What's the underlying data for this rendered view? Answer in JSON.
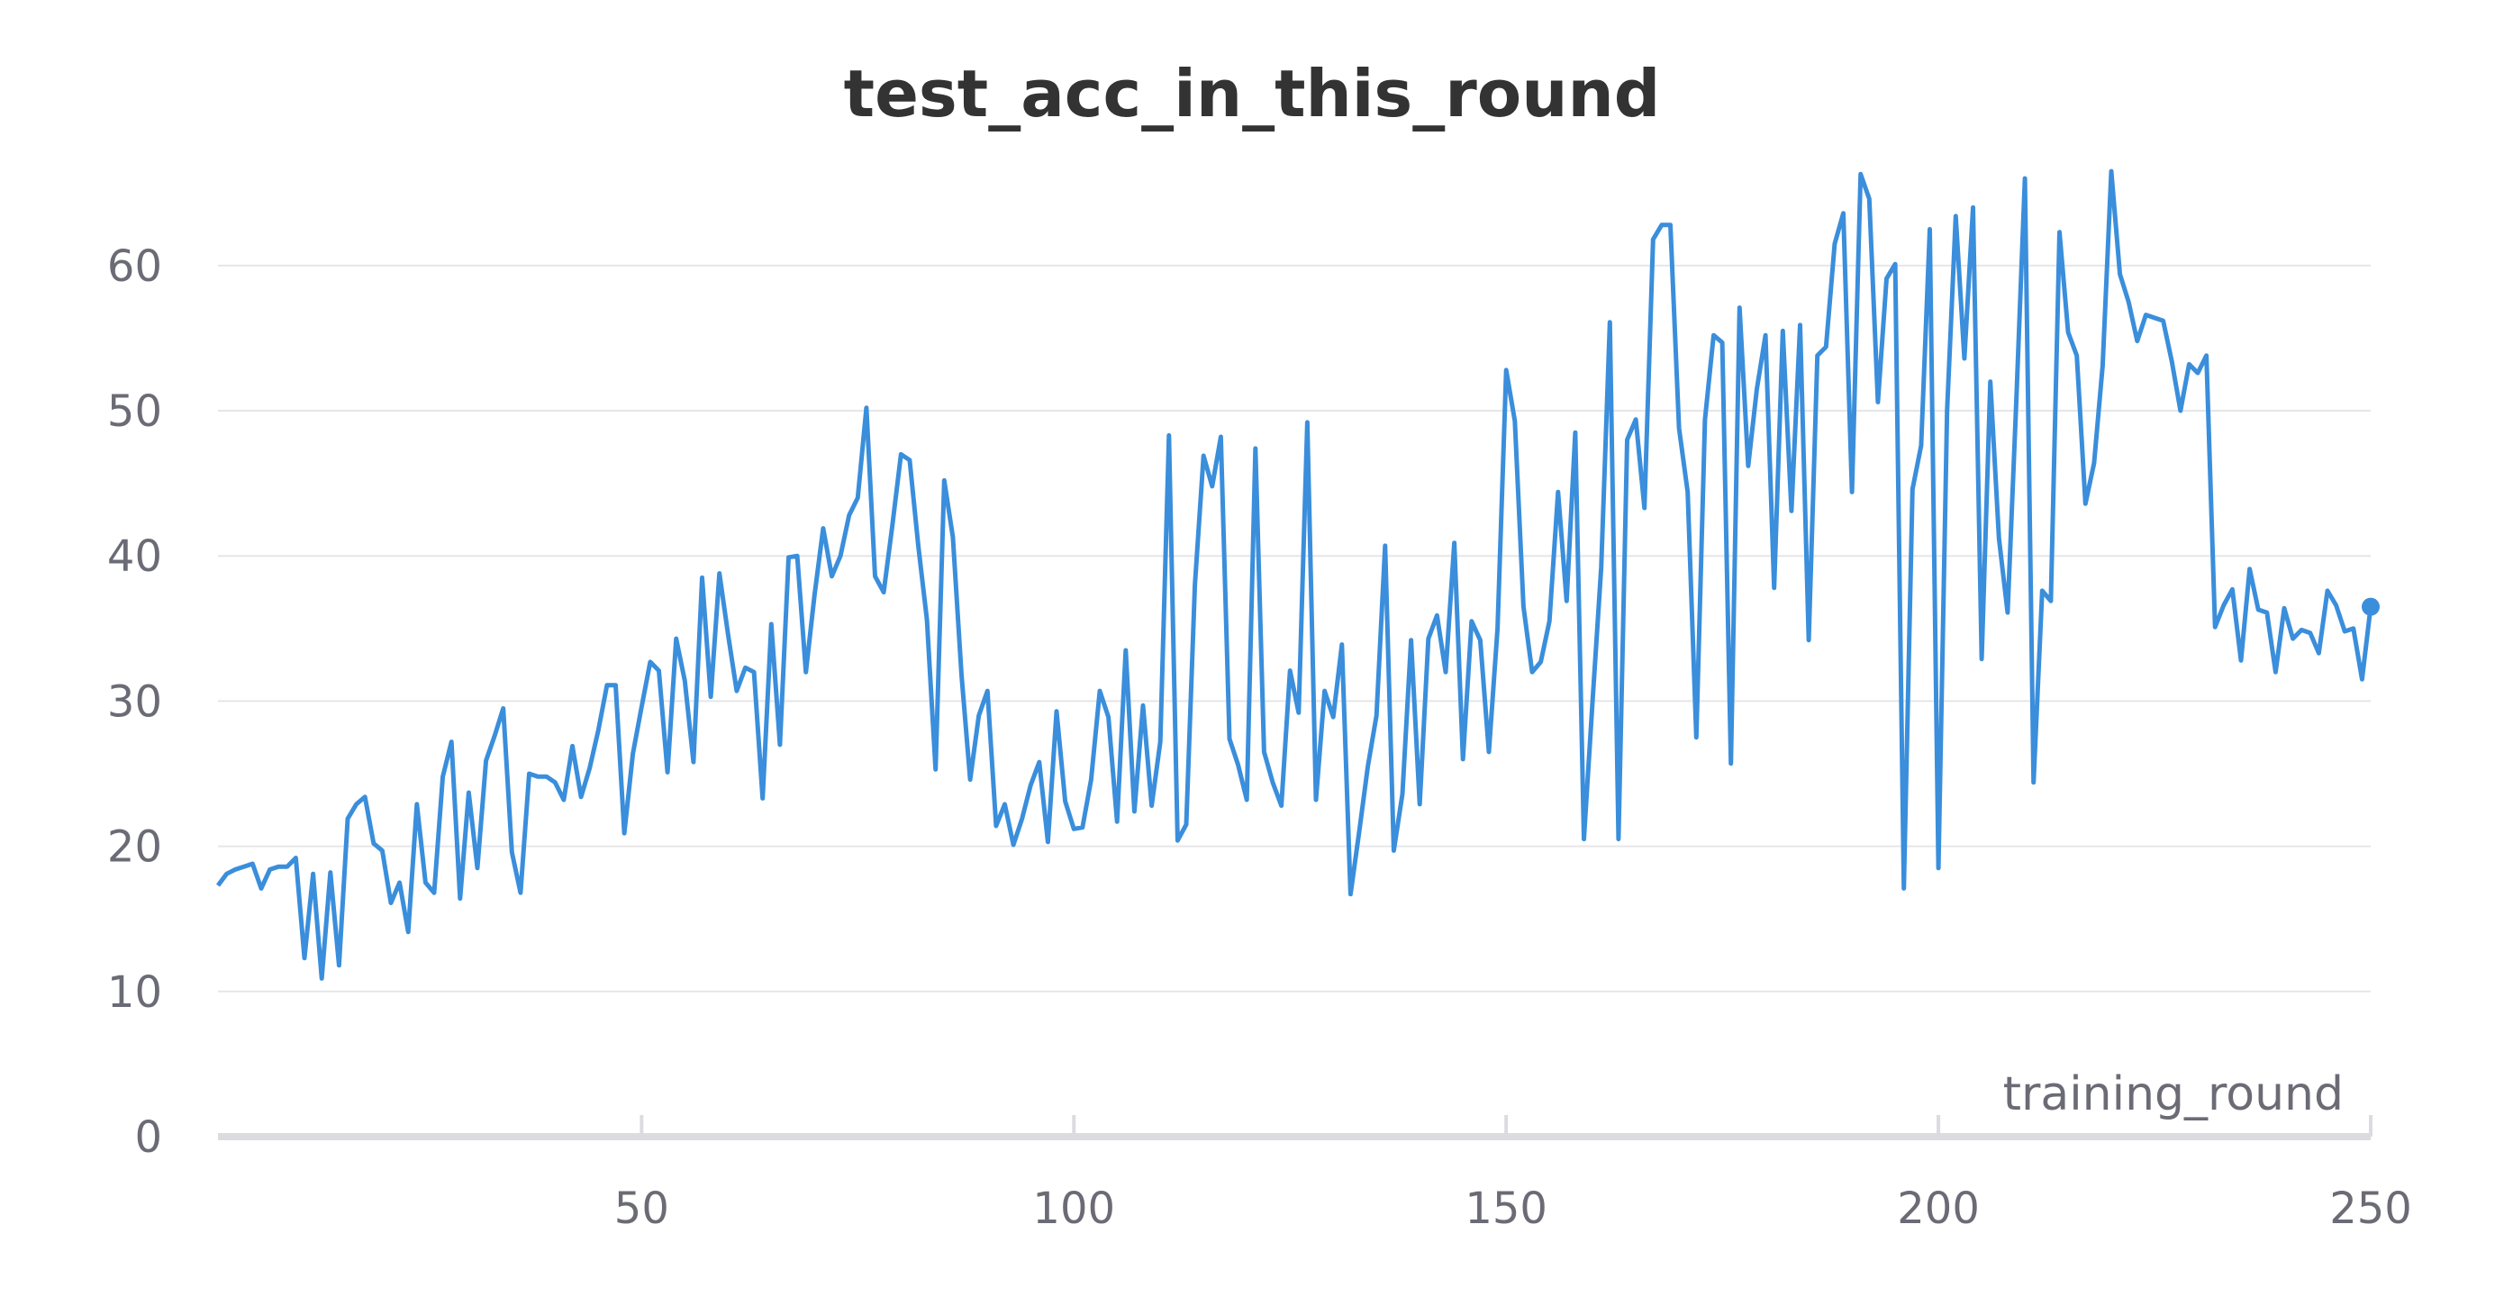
{
  "chart_data": {
    "type": "line",
    "title": "test_acc_in_this_round",
    "xlabel": "training_round",
    "ylabel": "",
    "xlim": [
      1,
      250
    ],
    "ylim": [
      0,
      67
    ],
    "x_ticks": [
      50,
      100,
      150,
      200,
      250
    ],
    "y_ticks": [
      0,
      10,
      20,
      30,
      40,
      50,
      60
    ],
    "grid": true,
    "line_color": "#3a8edb",
    "series": [
      {
        "x": [
          1,
          2,
          3,
          4,
          5,
          6,
          7,
          8,
          9,
          10,
          11,
          12,
          13,
          14,
          15,
          16,
          17,
          18,
          19,
          20,
          21,
          22,
          23,
          24,
          25,
          26,
          27,
          28,
          29,
          30,
          31,
          32,
          33,
          34,
          35,
          36,
          37,
          38,
          39,
          40,
          41,
          42,
          43,
          44,
          45,
          46,
          47,
          48,
          49,
          50,
          51,
          52,
          53,
          54,
          55,
          56,
          57,
          58,
          59,
          60,
          61,
          62,
          63,
          64,
          65,
          66,
          67,
          68,
          69,
          70,
          71,
          72,
          73,
          74,
          75,
          76,
          77,
          78,
          79,
          80,
          81,
          82,
          83,
          84,
          85,
          86,
          87,
          88,
          89,
          90,
          91,
          92,
          93,
          94,
          95,
          96,
          97,
          98,
          99,
          100,
          101,
          102,
          103,
          104,
          105,
          106,
          107,
          108,
          109,
          110,
          111,
          112,
          113,
          114,
          115,
          116,
          117,
          118,
          119,
          120,
          121,
          122,
          123,
          124,
          125,
          126,
          127,
          128,
          129,
          130,
          131,
          132,
          133,
          134,
          135,
          136,
          137,
          138,
          139,
          140,
          141,
          142,
          143,
          144,
          145,
          146,
          147,
          148,
          149,
          150,
          151,
          152,
          153,
          154,
          155,
          156,
          157,
          158,
          159,
          160,
          161,
          162,
          163,
          164,
          165,
          166,
          167,
          168,
          169,
          170,
          171,
          172,
          173,
          174,
          175,
          176,
          177,
          178,
          179,
          180,
          181,
          182,
          183,
          184,
          185,
          186,
          187,
          188,
          189,
          190,
          191,
          192,
          193,
          194,
          195,
          196,
          197,
          198,
          199,
          200,
          201,
          202,
          203,
          204,
          205,
          206,
          207,
          208,
          209,
          210,
          211,
          212,
          213,
          214,
          215,
          216,
          217,
          218,
          219,
          220,
          221,
          222,
          223,
          224,
          225,
          226,
          227,
          228,
          229,
          230,
          231,
          232,
          233,
          234,
          235,
          236,
          237,
          238,
          239,
          240,
          241,
          242,
          243,
          244,
          245,
          246,
          247,
          248,
          249,
          250
        ],
        "values": [
          17.3,
          18.1,
          18.4,
          18.6,
          18.8,
          17.1,
          18.4,
          18.6,
          18.6,
          19.2,
          12.3,
          18.1,
          10.9,
          18.2,
          11.8,
          21.9,
          22.9,
          23.4,
          20.2,
          19.7,
          16.1,
          17.5,
          14.1,
          22.9,
          17.5,
          16.8,
          24.8,
          27.2,
          16.4,
          23.7,
          18.5,
          25.9,
          27.6,
          29.5,
          19.6,
          16.8,
          25.0,
          24.8,
          24.8,
          24.4,
          23.2,
          26.9,
          23.4,
          25.4,
          28.0,
          31.1,
          31.1,
          20.9,
          26.4,
          29.6,
          32.7,
          32.1,
          25.1,
          34.3,
          31.4,
          25.8,
          38.5,
          30.3,
          38.8,
          34.6,
          30.7,
          32.3,
          32.0,
          23.3,
          35.3,
          27.0,
          39.9,
          40.0,
          32.0,
          37.3,
          41.9,
          38.6,
          40.0,
          42.8,
          44.0,
          50.2,
          38.6,
          37.5,
          42.1,
          47.0,
          46.6,
          40.7,
          35.6,
          25.3,
          45.2,
          41.3,
          31.8,
          24.6,
          29.0,
          30.7,
          21.4,
          22.9,
          20.1,
          21.9,
          24.2,
          25.8,
          20.3,
          29.3,
          23.1,
          21.2,
          21.3,
          24.6,
          30.7,
          28.9,
          21.7,
          33.5,
          22.4,
          29.7,
          22.8,
          27.2,
          48.3,
          20.4,
          21.5,
          38.0,
          46.9,
          44.8,
          48.2,
          27.4,
          25.6,
          23.2,
          47.4,
          26.5,
          24.4,
          22.8,
          32.1,
          29.2,
          49.2,
          23.2,
          30.7,
          28.9,
          33.9,
          16.7,
          21.0,
          25.5,
          29.0,
          40.7,
          19.7,
          23.6,
          34.2,
          22.9,
          34.3,
          35.9,
          32.0,
          40.9,
          26.0,
          35.5,
          34.2,
          26.5,
          35.0,
          52.8,
          49.3,
          36.5,
          32.0,
          32.7,
          35.5,
          44.4,
          36.9,
          48.5,
          20.5,
          30.0,
          39.2,
          56.1,
          20.5,
          48.0,
          49.4,
          43.3,
          61.8,
          62.8,
          62.8,
          48.8,
          44.4,
          27.5,
          49.4,
          55.2,
          54.7,
          25.7,
          57.1,
          46.2,
          51.5,
          55.2,
          37.8,
          55.5,
          43.1,
          55.9,
          34.2,
          53.8,
          54.4,
          61.5,
          63.6,
          44.4,
          66.3,
          64.6,
          50.6,
          59.1,
          60.1,
          17.1,
          44.6,
          47.6,
          62.5,
          18.5,
          50.0,
          63.4,
          53.6,
          64.0,
          32.9,
          52.0,
          41.2,
          36.1,
          50.6,
          66.0,
          24.4,
          37.6,
          36.9,
          62.3,
          55.4,
          53.8,
          43.6,
          46.4,
          53.1,
          66.5,
          59.4,
          57.5,
          54.8,
          56.6,
          56.4,
          56.2,
          53.4,
          50.0,
          53.2,
          52.6,
          53.8,
          35.1,
          36.6,
          37.7,
          32.8,
          39.1,
          36.3,
          36.1,
          32.0,
          36.4,
          34.3,
          34.9,
          34.7,
          33.3,
          37.6,
          36.6,
          34.8,
          35.0,
          31.5,
          36.5
        ]
      }
    ]
  }
}
